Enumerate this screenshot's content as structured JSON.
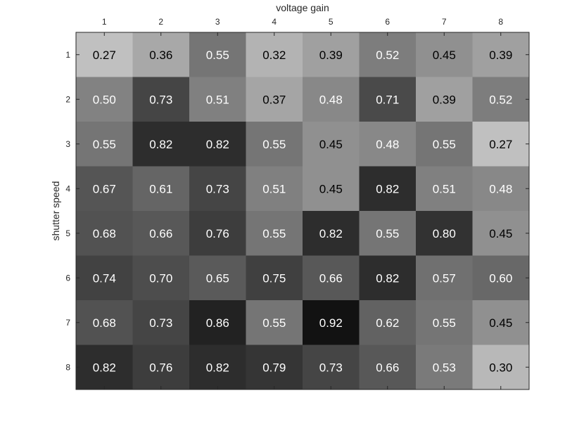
{
  "chart_data": {
    "type": "heatmap",
    "title": "",
    "xlabel": "voltage gain",
    "ylabel": "shutter speed",
    "x_categories": [
      "1",
      "2",
      "3",
      "4",
      "5",
      "6",
      "7",
      "8"
    ],
    "y_categories": [
      "1",
      "2",
      "3",
      "4",
      "5",
      "6",
      "7",
      "8"
    ],
    "x_axis_location": "top",
    "colormap": "gray (reversed)",
    "color_range": [
      0.27,
      0.92
    ],
    "values": [
      [
        0.27,
        0.36,
        0.55,
        0.32,
        0.39,
        0.52,
        0.45,
        0.39
      ],
      [
        0.5,
        0.73,
        0.51,
        0.37,
        0.48,
        0.71,
        0.39,
        0.52
      ],
      [
        0.55,
        0.82,
        0.82,
        0.55,
        0.45,
        0.48,
        0.55,
        0.27
      ],
      [
        0.67,
        0.61,
        0.73,
        0.51,
        0.45,
        0.82,
        0.51,
        0.48
      ],
      [
        0.68,
        0.66,
        0.76,
        0.55,
        0.82,
        0.55,
        0.8,
        0.45
      ],
      [
        0.74,
        0.7,
        0.65,
        0.75,
        0.66,
        0.82,
        0.57,
        0.6
      ],
      [
        0.68,
        0.73,
        0.86,
        0.55,
        0.92,
        0.62,
        0.55,
        0.45
      ],
      [
        0.82,
        0.76,
        0.82,
        0.79,
        0.73,
        0.66,
        0.53,
        0.3
      ]
    ],
    "grid": false,
    "colorbar": false
  }
}
